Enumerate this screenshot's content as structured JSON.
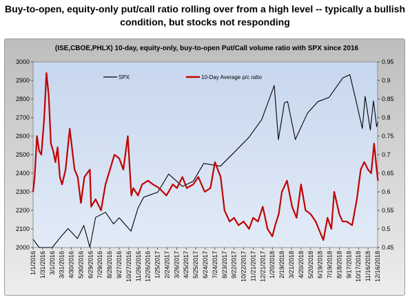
{
  "headline": {
    "line1": "Buy-to-open, equity-only put/call ratio rolling over from a high level -- typically a bullish",
    "line2": "condition, but stocks not responding"
  },
  "chart_data": {
    "type": "line",
    "title": "(ISE,CBOE,PHLX) 10-day, equity-only, buy-to-open  Put/Call volume ratio with SPX since 2016",
    "colors": {
      "spx": "#000000",
      "ratio": "#c00000",
      "plot_area_top": "#c7d7ee",
      "plot_area_bottom": "#e2ebf7"
    },
    "grid": false,
    "legend_position": "top-left",
    "y_left": {
      "min": 2000,
      "max": 3000,
      "step": 100,
      "ticks": [
        "2000",
        "2100",
        "2200",
        "2300",
        "2400",
        "2500",
        "2600",
        "2700",
        "2800",
        "2900",
        "3000"
      ]
    },
    "y_right": {
      "min": 0.45,
      "max": 0.95,
      "step": 0.05,
      "ticks": [
        "0.45",
        "0.5",
        "0.55",
        "0.6",
        "0.65",
        "0.7",
        "0.75",
        "0.8",
        "0.85",
        "0.9",
        "0.95"
      ]
    },
    "x_ticks": [
      "1/1/2016",
      "1/31/2016",
      "3/1/2016",
      "3/31/2016",
      "4/30/2016",
      "5/30/2016",
      "6/29/2016",
      "7/29/2016",
      "8/28/2016",
      "9/27/2016",
      "10/27/2016",
      "11/26/2016",
      "12/26/2016",
      "1/25/2017",
      "2/24/2017",
      "3/26/2017",
      "4/25/2017",
      "5/25/2017",
      "6/24/2017",
      "7/24/2017",
      "8/23/2017",
      "9/22/2017",
      "10/22/2017",
      "11/21/2017",
      "12/21/2017",
      "1/20/2018",
      "2/19/2018",
      "3/21/2018",
      "4/20/2018",
      "5/20/2018",
      "6/19/2018",
      "7/19/2018",
      "8/18/2018",
      "9/17/2018",
      "10/17/2018",
      "11/16/2018",
      "12/16/2018"
    ],
    "series": [
      {
        "name": "SPX",
        "axis": "left",
        "color": "#000000",
        "x": [
          "1/1/2016",
          "1/20/2016",
          "2/11/2016",
          "3/1/2016",
          "3/31/2016",
          "4/20/2016",
          "5/19/2016",
          "6/8/2016",
          "6/27/2016",
          "7/15/2016",
          "8/15/2016",
          "9/9/2016",
          "9/27/2016",
          "11/3/2016",
          "11/25/2016",
          "12/13/2016",
          "1/26/2017",
          "3/1/2017",
          "4/13/2017",
          "5/17/2017",
          "6/19/2017",
          "8/10/2017",
          "9/20/2017",
          "11/8/2017",
          "12/18/2017",
          "1/26/2018",
          "2/8/2018",
          "2/27/2018",
          "3/9/2018",
          "4/2/2018",
          "5/10/2018",
          "6/12/2018",
          "7/17/2018",
          "8/29/2018",
          "9/20/2018",
          "10/10/2018",
          "10/29/2018",
          "11/7/2018",
          "11/23/2018",
          "12/3/2018",
          "12/13/2018",
          "12/17/2018"
        ],
        "values": [
          2044,
          1880,
          1829,
          1978,
          2064,
          2102,
          2048,
          2119,
          2001,
          2162,
          2190,
          2127,
          2160,
          2088,
          2213,
          2271,
          2298,
          2396,
          2329,
          2357,
          2453,
          2438,
          2508,
          2594,
          2690,
          2873,
          2581,
          2780,
          2786,
          2582,
          2723,
          2786,
          2809,
          2914,
          2931,
          2785,
          2641,
          2814,
          2633,
          2790,
          2651,
          2675
        ]
      },
      {
        "name": "10-Day Average p/c ratio",
        "axis": "right",
        "color": "#c00000",
        "x": [
          "1/1/2016",
          "1/6/2016",
          "1/13/2016",
          "1/20/2016",
          "1/27/2016",
          "2/5/2016",
          "2/12/2016",
          "2/19/2016",
          "2/26/2016",
          "3/4/2016",
          "3/11/2016",
          "3/18/2016",
          "3/25/2016",
          "4/1/2016",
          "4/12/2016",
          "4/25/2016",
          "5/10/2016",
          "5/20/2016",
          "5/30/2016",
          "6/10/2016",
          "6/27/2016",
          "7/1/2016",
          "7/15/2016",
          "8/1/2016",
          "8/15/2016",
          "8/29/2016",
          "9/12/2016",
          "9/27/2016",
          "10/10/2016",
          "10/24/2016",
          "11/4/2016",
          "11/10/2016",
          "11/25/2016",
          "12/8/2016",
          "12/26/2016",
          "1/11/2017",
          "1/30/2017",
          "2/22/2017",
          "3/14/2017",
          "3/27/2017",
          "4/13/2017",
          "4/27/2017",
          "5/17/2017",
          "6/2/2017",
          "6/22/2017",
          "7/10/2017",
          "7/24/2017",
          "8/11/2017",
          "8/23/2017",
          "9/8/2017",
          "9/22/2017",
          "10/6/2017",
          "10/22/2017",
          "11/8/2017",
          "11/21/2017",
          "12/6/2017",
          "12/21/2017",
          "1/5/2018",
          "1/20/2018",
          "1/29/2018",
          "2/9/2018",
          "2/19/2018",
          "3/7/2018",
          "3/23/2018",
          "4/6/2018",
          "4/20/2018",
          "5/4/2018",
          "5/20/2018",
          "6/5/2018",
          "6/19/2018",
          "6/29/2018",
          "7/12/2018",
          "7/24/2018",
          "8/2/2018",
          "8/18/2018",
          "8/28/2018",
          "9/10/2018",
          "9/27/2018",
          "10/12/2018",
          "10/24/2018",
          "11/4/2018",
          "11/16/2018",
          "11/26/2018",
          "12/5/2018",
          "12/12/2018",
          "12/17/2018"
        ],
        "values": [
          0.6,
          0.64,
          0.75,
          0.71,
          0.7,
          0.8,
          0.92,
          0.86,
          0.73,
          0.71,
          0.68,
          0.72,
          0.64,
          0.62,
          0.66,
          0.77,
          0.66,
          0.64,
          0.57,
          0.64,
          0.66,
          0.56,
          0.58,
          0.55,
          0.62,
          0.66,
          0.7,
          0.69,
          0.66,
          0.75,
          0.59,
          0.61,
          0.59,
          0.62,
          0.63,
          0.62,
          0.61,
          0.59,
          0.62,
          0.61,
          0.64,
          0.61,
          0.62,
          0.64,
          0.6,
          0.61,
          0.68,
          0.64,
          0.55,
          0.52,
          0.53,
          0.51,
          0.52,
          0.5,
          0.53,
          0.52,
          0.56,
          0.5,
          0.48,
          0.51,
          0.54,
          0.6,
          0.63,
          0.56,
          0.53,
          0.62,
          0.55,
          0.54,
          0.52,
          0.49,
          0.47,
          0.53,
          0.5,
          0.6,
          0.54,
          0.52,
          0.52,
          0.51,
          0.58,
          0.66,
          0.68,
          0.66,
          0.65,
          0.73,
          0.67,
          0.63
        ]
      }
    ]
  }
}
